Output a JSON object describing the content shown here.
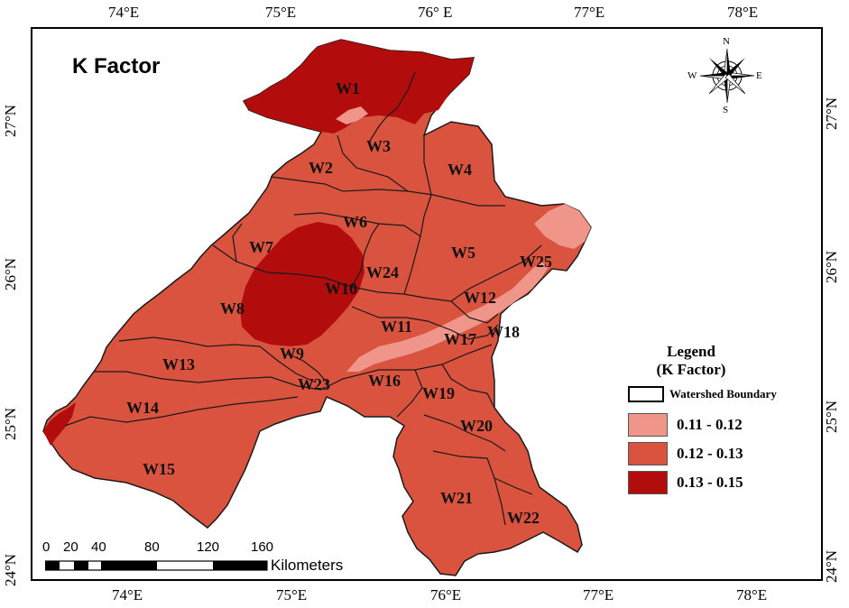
{
  "title": "K Factor",
  "lon_ticks": [
    "74°E",
    "75°E",
    "76° E",
    "77°E",
    "78°E"
  ],
  "lon_ticks_bottom": [
    "74°E",
    "75°E",
    "76°E",
    "77°E",
    "78°E"
  ],
  "lat_ticks": [
    "27°N",
    "26°N",
    "25°N",
    "24°N"
  ],
  "watersheds": [
    "W1",
    "W2",
    "W3",
    "W4",
    "W5",
    "W6",
    "W7",
    "W8",
    "W9",
    "W10",
    "W11",
    "W12",
    "W13",
    "W14",
    "W15",
    "W16",
    "W17",
    "W18",
    "W19",
    "W20",
    "W21",
    "W22",
    "W23",
    "W24",
    "W25"
  ],
  "legend": {
    "title_line1": "Legend",
    "title_line2": "(K Factor)",
    "boundary_label": "Watershed Boundary",
    "classes": [
      {
        "label": "0.11 - 0.12",
        "color": "#f0958a"
      },
      {
        "label": "0.12 - 0.13",
        "color": "#d9533f"
      },
      {
        "label": "0.13 - 0.15",
        "color": "#b30c0c"
      }
    ]
  },
  "scalebar": {
    "ticks": [
      "0",
      "20",
      "40",
      "80",
      "120",
      "160"
    ],
    "unit": "Kilometers"
  },
  "compass": {
    "n": "N",
    "s": "S",
    "e": "E",
    "w": "W"
  },
  "colors": {
    "low": "#f0958a",
    "mid": "#d9533f",
    "high": "#b30c0c",
    "boundary": "#1a1a1a"
  }
}
